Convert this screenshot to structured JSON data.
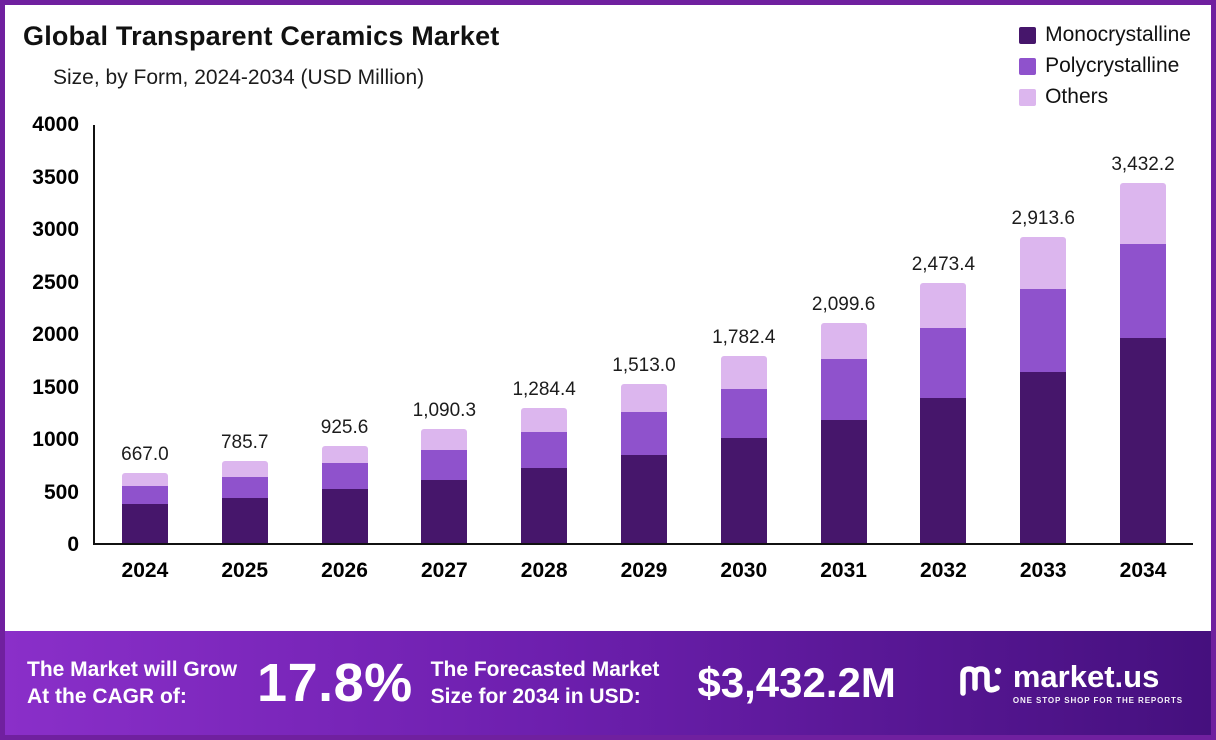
{
  "header": {
    "title": "Global Transparent Ceramics Market",
    "subtitle": "Size, by Form, 2024-2034 (USD Million)"
  },
  "chart_data": {
    "type": "bar",
    "stacked": true,
    "title": "Global Transparent Ceramics Market",
    "subtitle": "Size, by Form, 2024-2034 (USD Million)",
    "categories": [
      "2024",
      "2025",
      "2026",
      "2027",
      "2028",
      "2029",
      "2030",
      "2031",
      "2032",
      "2033",
      "2034"
    ],
    "totals": [
      667.0,
      785.7,
      925.6,
      1090.3,
      1284.4,
      1513.0,
      1782.4,
      2099.6,
      2473.4,
      2913.6,
      3432.2
    ],
    "total_labels": [
      "667.0",
      "785.7",
      "925.6",
      "1,090.3",
      "1,284.4",
      "1,513.0",
      "1,782.4",
      "2,099.6",
      "2,473.4",
      "2,913.6",
      "3,432.2"
    ],
    "series": [
      {
        "name": "Monocrystalline",
        "color": "#46166b",
        "values": [
          370,
          430,
          510,
          600,
          710,
          840,
          1000,
          1170,
          1380,
          1630,
          1950
        ]
      },
      {
        "name": "Polycrystalline",
        "color": "#8f52cc",
        "values": [
          170,
          200,
          250,
          290,
          350,
          410,
          470,
          580,
          670,
          790,
          900
        ]
      },
      {
        "name": "Others",
        "color": "#dcb6ee",
        "values": [
          127.0,
          155.7,
          165.6,
          200.3,
          224.4,
          263.0,
          312.4,
          349.6,
          423.4,
          493.6,
          582.2
        ]
      }
    ],
    "ylim": [
      0,
      4000
    ],
    "y_ticks": [
      0,
      500,
      1000,
      1500,
      2000,
      2500,
      3000,
      3500,
      4000
    ],
    "xlabel": "",
    "ylabel": "",
    "grid": false,
    "legend_position": "top-right"
  },
  "banner": {
    "cagr_label_line1": "The Market will Grow",
    "cagr_label_line2": "At the CAGR of:",
    "cagr_value": "17.8%",
    "forecast_label_line1": "The Forecasted Market",
    "forecast_label_line2": "Size for 2034 in USD:",
    "forecast_value": "$3,432.2M",
    "brand": "market.us",
    "brand_tagline": "ONE STOP SHOP FOR THE REPORTS"
  },
  "colors": {
    "frame_border": "#70209f",
    "banner_gradient_start": "#8a2fc9",
    "banner_gradient_end": "#45107e",
    "monocrystalline": "#46166b",
    "polycrystalline": "#8f52cc",
    "others": "#dcb6ee"
  }
}
